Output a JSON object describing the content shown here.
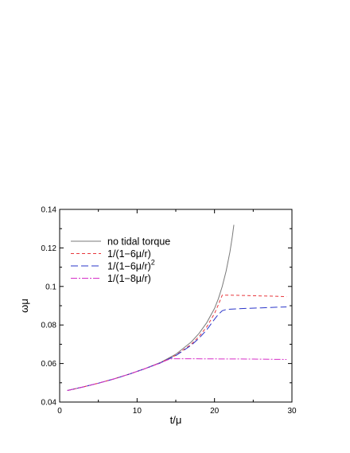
{
  "chart_data": {
    "type": "line",
    "title": "",
    "xlabel": "t/μ",
    "ylabel": "ωμ",
    "xlim": [
      0,
      30
    ],
    "ylim": [
      0.04,
      0.14
    ],
    "xticks": [
      0,
      10,
      20,
      30
    ],
    "xtick_labels": [
      "0",
      "10",
      "20",
      "30"
    ],
    "yticks": [
      0.04,
      0.06,
      0.08,
      0.1,
      0.12,
      0.14
    ],
    "ytick_labels": [
      "0.04",
      "0.06",
      "0.08",
      "0.1",
      "0.12",
      "0.14"
    ],
    "grid": false,
    "legend_position": "top-left",
    "series": [
      {
        "name": "no tidal torque",
        "color": "#7a7a7a",
        "dash": "solid",
        "x": [
          1,
          3,
          5,
          7,
          9,
          11,
          13,
          15,
          17,
          18,
          19,
          20,
          20.5,
          21,
          21.5,
          22,
          22.3,
          22.5
        ],
        "y": [
          0.046,
          0.0478,
          0.0498,
          0.052,
          0.0545,
          0.0573,
          0.0605,
          0.0648,
          0.0712,
          0.0756,
          0.0812,
          0.0886,
          0.0936,
          0.1,
          0.108,
          0.118,
          0.126,
          0.132
        ]
      },
      {
        "name": "1/(1−6μ/r)",
        "color": "#e8383d",
        "dash": "4,3",
        "x": [
          1,
          3,
          5,
          7,
          9,
          11,
          13,
          15,
          17,
          18,
          19,
          20,
          20.5,
          21,
          22,
          24,
          26,
          28,
          29.3
        ],
        "y": [
          0.046,
          0.0478,
          0.0498,
          0.052,
          0.0545,
          0.0573,
          0.0603,
          0.0643,
          0.07,
          0.074,
          0.079,
          0.086,
          0.0905,
          0.0955,
          0.0955,
          0.0953,
          0.0951,
          0.0949,
          0.0947
        ]
      },
      {
        "name": "1/(1−6μ/r)",
        "name_superscript": "2",
        "color": "#2a35c9",
        "dash": "9,4",
        "x": [
          1,
          3,
          5,
          7,
          9,
          11,
          13,
          15,
          17,
          18,
          19,
          20,
          20.5,
          21,
          21.5,
          22,
          24,
          26,
          28,
          29.3
        ],
        "y": [
          0.046,
          0.0478,
          0.0498,
          0.052,
          0.0545,
          0.0573,
          0.0603,
          0.0641,
          0.0695,
          0.0731,
          0.0775,
          0.083,
          0.0855,
          0.0874,
          0.088,
          0.0882,
          0.0886,
          0.0889,
          0.0892,
          0.0894
        ]
      },
      {
        "name": "1/(1−8μ/r)",
        "color": "#d62fc8",
        "dash": "8,2,2,2",
        "x": [
          1,
          3,
          5,
          7,
          9,
          11,
          13,
          14,
          14.5,
          16,
          20,
          25,
          29.3
        ],
        "y": [
          0.046,
          0.0478,
          0.0498,
          0.052,
          0.0545,
          0.0573,
          0.0603,
          0.062,
          0.0625,
          0.0625,
          0.0624,
          0.0623,
          0.0621
        ]
      }
    ]
  }
}
